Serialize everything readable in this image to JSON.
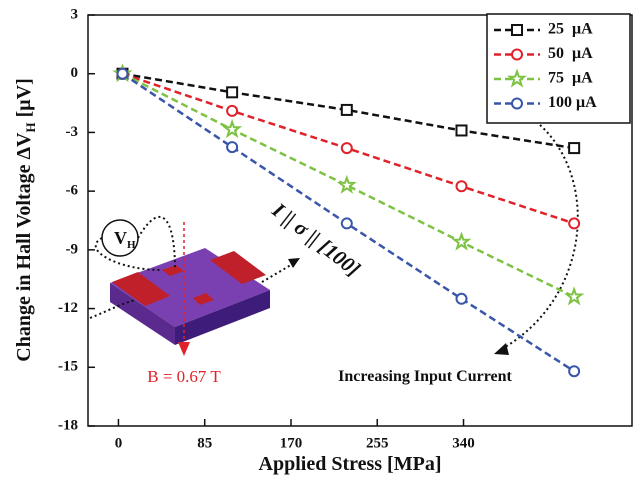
{
  "chart_data": {
    "type": "line",
    "xlabel": "Applied Stress [MPa]",
    "ylabel": "Change in Hall Voltage ΔV",
    "ylabel_sub": "H",
    "ylabel_unit": " [μV]",
    "x": [
      4,
      112,
      225,
      338,
      449
    ],
    "xlim": [
      -30,
      506
    ],
    "xticks": [
      0,
      85,
      170,
      255,
      340
    ],
    "ylim": [
      -18,
      3
    ],
    "yticks": [
      3,
      0,
      -3,
      -6,
      -9,
      -12,
      -15,
      -18
    ],
    "legend": "upper right",
    "series": [
      {
        "name": "25  μA",
        "color": "#111111",
        "marker": "square",
        "values": [
          0,
          -0.95,
          -1.85,
          -2.9,
          -3.8
        ]
      },
      {
        "name": "50  μA",
        "color": "#e0222a",
        "marker": "circle",
        "values": [
          0,
          -1.9,
          -3.8,
          -5.75,
          -7.65
        ]
      },
      {
        "name": "75  μA",
        "color": "#7dc242",
        "marker": "star",
        "values": [
          0,
          -2.85,
          -5.7,
          -8.6,
          -11.4
        ]
      },
      {
        "name": "100 μA",
        "color": "#3a56a8",
        "marker": "circle",
        "values": [
          0,
          -3.75,
          -7.65,
          -11.5,
          -15.2
        ]
      }
    ],
    "annotations": {
      "direction": "I || σ || [100]",
      "current": "Increasing Input Current",
      "field": "B = 0.67 T",
      "probe": "V",
      "probe_sub": "H"
    }
  }
}
